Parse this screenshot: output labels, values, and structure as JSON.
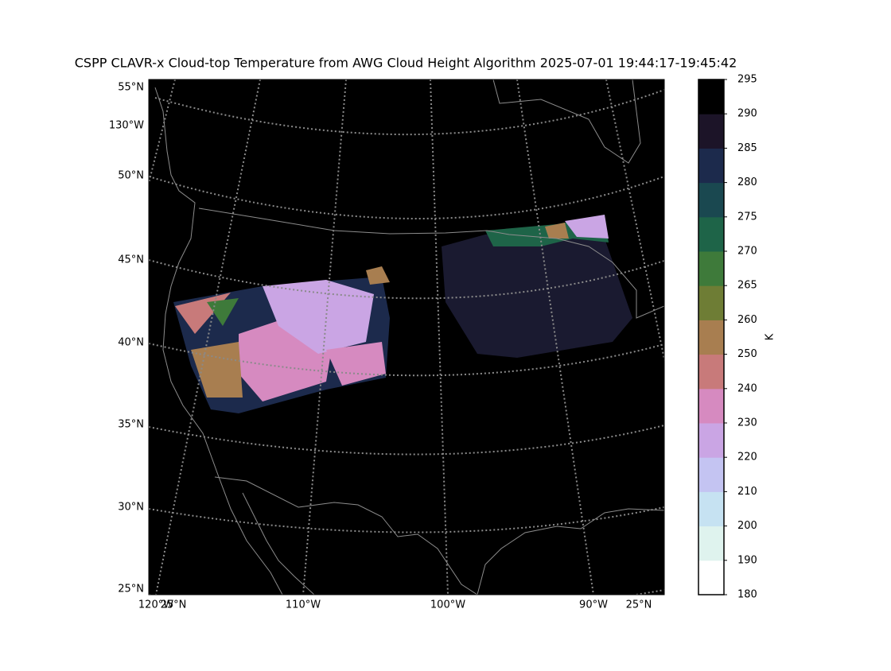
{
  "title": "CSPP CLAVR-x Cloud-top Temperature from AWG Cloud Height Algorithm 2025-07-01 19:44:17-19:45:42",
  "left_labels": [
    "55°N",
    "130°W",
    "50°N",
    "45°N",
    "40°N",
    "35°N",
    "30°N",
    "25°N"
  ],
  "bottom_labels": [
    "120°W",
    "25°N",
    "110°W",
    "100°W",
    "90°W",
    "25°N"
  ],
  "colorbar": {
    "label": "K",
    "ticks": [
      180,
      190,
      200,
      210,
      220,
      230,
      240,
      250,
      260,
      265,
      270,
      275,
      280,
      285,
      290,
      295
    ],
    "colors": [
      "#ffffff",
      "#dff3ee",
      "#c6e2f2",
      "#c4c4f2",
      "#caa5e4",
      "#d68ac0",
      "#c87a7a",
      "#a87e50",
      "#6e7d35",
      "#3e7a3a",
      "#1e6448",
      "#1a4850",
      "#1c2a4c",
      "#1c1428",
      "#000000"
    ]
  }
}
